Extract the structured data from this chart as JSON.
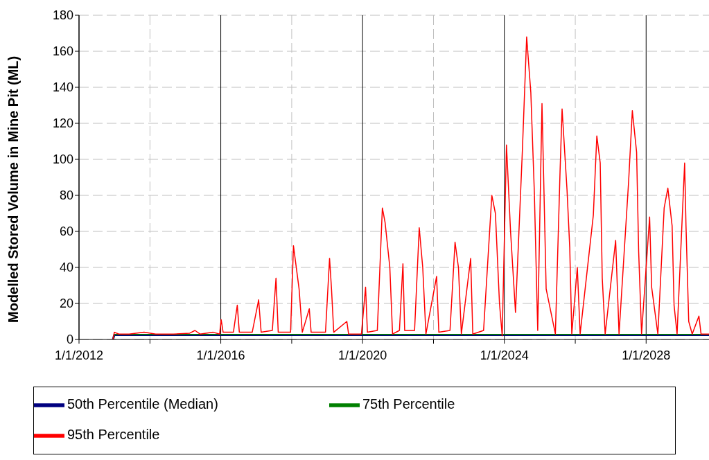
{
  "chart_data": {
    "type": "line",
    "ylabel": "Modelled Stored Volume in Mine Pit (ML)",
    "xlim": [
      "2012-01-01",
      "2029-10-10"
    ],
    "xticks": [
      {
        "value": "2012-01-01",
        "label": "1/1/2012"
      },
      {
        "value": "2014-01-01",
        "label": null
      },
      {
        "value": "2016-01-01",
        "label": "1/1/2016"
      },
      {
        "value": "2018-01-01",
        "label": null
      },
      {
        "value": "2020-01-01",
        "label": "1/1/2020"
      },
      {
        "value": "2022-01-01",
        "label": null
      },
      {
        "value": "2024-01-01",
        "label": "1/1/2024"
      },
      {
        "value": "2026-01-01",
        "label": null
      },
      {
        "value": "2028-01-01",
        "label": "1/1/2028"
      }
    ],
    "ylim": [
      0,
      180
    ],
    "yticks": [
      0,
      20,
      40,
      60,
      80,
      100,
      120,
      140,
      160,
      180
    ],
    "grid": true,
    "legend": "bottom",
    "marker": "none",
    "line_style": "solid",
    "series": [
      {
        "name": "50th Percentile (Median)",
        "color": "#000080",
        "x": [
          "2012-12-16",
          "2012-12-30",
          "2029-10-10"
        ],
        "values": [
          0,
          2.5,
          2.5
        ]
      },
      {
        "name": "75th Percentile",
        "color": "#008000",
        "x": [
          "2012-12-16",
          "2012-12-30",
          "2029-10-10"
        ],
        "values": [
          0,
          2.8,
          2.8
        ]
      },
      {
        "name": "95th Percentile",
        "color": "#ff0000",
        "x": [
          "2012-12-16",
          "2012-12-30",
          "2013-02-15",
          "2013-06-01",
          "2013-11-01",
          "2014-03-01",
          "2014-09-01",
          "2015-02-15",
          "2015-04-10",
          "2015-06-01",
          "2015-10-15",
          "2015-12-20",
          "2016-01-05",
          "2016-01-25",
          "2016-05-10",
          "2016-06-19",
          "2016-07-10",
          "2016-11-20",
          "2017-01-25",
          "2017-02-20",
          "2017-06-15",
          "2017-07-23",
          "2017-08-15",
          "2017-12-20",
          "2018-01-19",
          "2018-03-18",
          "2018-04-20",
          "2018-07-01",
          "2018-07-20",
          "2018-12-15",
          "2019-01-26",
          "2019-02-15",
          "2019-03-10",
          "2019-07-23",
          "2019-08-10",
          "2019-12-20",
          "2020-02-01",
          "2020-02-20",
          "2020-06-01",
          "2020-07-23",
          "2020-08-20",
          "2020-10-08",
          "2020-11-05",
          "2021-01-15",
          "2021-02-20",
          "2021-03-10",
          "2021-06-20",
          "2021-08-07",
          "2021-09-12",
          "2021-10-15",
          "2022-02-02",
          "2022-02-25",
          "2022-06-20",
          "2022-08-11",
          "2022-09-15",
          "2022-10-15",
          "2023-01-19",
          "2023-02-10",
          "2023-06-01",
          "2023-08-25",
          "2023-10-01",
          "2023-11-12",
          "2023-12-10",
          "2024-01-23",
          "2024-03-05",
          "2024-04-25",
          "2024-07-05",
          "2024-08-18",
          "2024-09-30",
          "2024-11-05",
          "2024-12-10",
          "2025-01-23",
          "2025-03-07",
          "2025-06-10",
          "2025-07-28",
          "2025-08-18",
          "2025-10-08",
          "2025-11-05",
          "2025-11-26",
          "2026-01-22",
          "2026-02-20",
          "2026-07-06",
          "2026-08-11",
          "2026-09-15",
          "2026-10-06",
          "2026-11-05",
          "2027-02-21",
          "2027-03-28",
          "2027-07-05",
          "2027-08-12",
          "2027-09-25",
          "2027-10-16",
          "2027-11-15",
          "2028-02-06",
          "2028-02-27",
          "2028-05-01",
          "2028-07-05",
          "2028-08-12",
          "2028-09-25",
          "2028-10-15",
          "2028-11-15",
          "2029-02-01",
          "2029-02-15",
          "2029-03-15",
          "2029-04-20",
          "2029-06-28",
          "2029-07-20",
          "2029-10-10"
        ],
        "values": [
          0,
          4,
          3,
          3,
          4,
          3,
          3,
          3.5,
          5,
          3,
          4,
          3,
          11,
          4,
          4,
          19,
          4,
          4,
          22,
          4,
          5,
          34,
          4,
          4,
          52,
          28,
          4,
          17,
          4,
          4,
          45,
          28,
          4,
          10,
          3,
          3,
          29,
          4,
          5,
          73,
          65,
          40,
          3,
          5,
          42,
          5,
          5,
          62,
          40,
          3,
          35,
          4,
          5,
          54,
          40,
          3,
          45,
          3,
          5,
          80,
          70,
          20,
          2,
          108,
          60,
          15,
          105,
          168,
          137,
          82,
          5,
          131,
          28,
          3,
          93,
          128,
          83,
          51,
          3,
          40,
          3,
          69,
          113,
          98,
          34,
          3,
          55,
          3,
          88,
          127,
          104,
          49,
          3,
          68,
          29,
          3,
          73,
          84,
          63,
          19,
          3,
          98,
          63,
          10,
          3,
          13,
          3,
          3
        ]
      }
    ]
  }
}
